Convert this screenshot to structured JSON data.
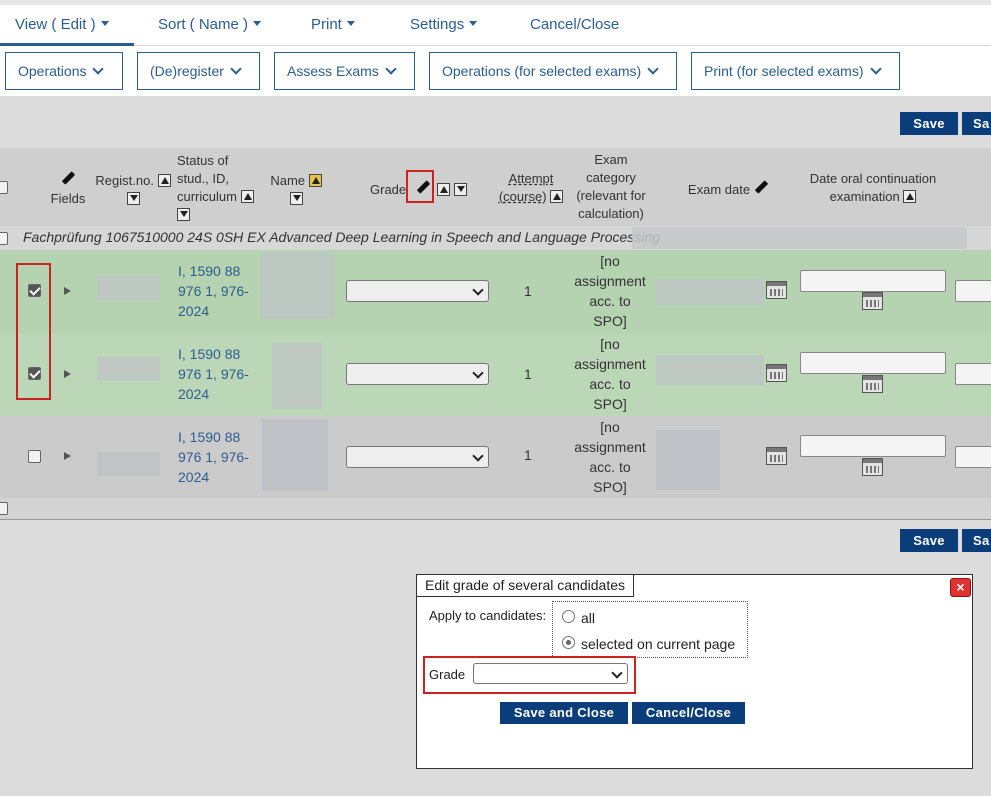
{
  "top_menu": {
    "view": "View ( Edit )",
    "sort": "Sort ( Name )",
    "print": "Print",
    "settings": "Settings",
    "cancel": "Cancel/Close"
  },
  "ops_bar": {
    "operations": "Operations",
    "deregister": "(De)register",
    "assess": "Assess Exams",
    "operations_selected": "Operations (for selected exams)",
    "print_selected": "Print (for selected exams)"
  },
  "save_label": "Save",
  "save_label_cut": "Sa",
  "table": {
    "headers": {
      "fields": "Fields",
      "regist": "Regist.no.",
      "status": [
        "Status of",
        "stud., ID,",
        "curriculum"
      ],
      "name": "Name",
      "grade": "Grade",
      "attempt": [
        "Attempt",
        "(course)"
      ],
      "exam_category": [
        "Exam",
        "category",
        "(relevant for",
        "calculation)"
      ],
      "exam_date": "Exam date",
      "date_oral": [
        "Date oral continuation",
        "examination"
      ]
    },
    "group_label": "Fachprüfung 1067510000 24S 0SH EX Advanced Deep Learning in Speech and Language Processing",
    "rows": [
      {
        "checked": true,
        "status": [
          "I, 1590 88",
          "976 1, 976-",
          "2024"
        ],
        "attempt": "1",
        "category": [
          "[no",
          "assignment",
          "acc. to",
          "SPO]"
        ]
      },
      {
        "checked": true,
        "status": [
          "I, 1590 88",
          "976 1, 976-",
          "2024"
        ],
        "attempt": "1",
        "category": [
          "[no",
          "assignment",
          "acc. to",
          "SPO]"
        ]
      },
      {
        "checked": false,
        "status": [
          "I, 1590 88",
          "976 1, 976-",
          "2024"
        ],
        "attempt": "1",
        "category": [
          "[no",
          "assignment",
          "acc. to",
          "SPO]"
        ]
      }
    ]
  },
  "dialog": {
    "title": "Edit grade of several candidates",
    "close": "×",
    "apply_label": "Apply to candidates:",
    "option_all": "all",
    "option_selected": "selected on current page",
    "grade_label": "Grade",
    "save_close": "Save and Close",
    "cancel_close": "Cancel/Close"
  },
  "colors": {
    "primary": "#0b3d7a",
    "link": "#2c5d8f",
    "highlight": "#c22222",
    "selected_row": "#b5d2b1"
  },
  "icons": [
    "chevron-down-icon",
    "pencil-icon",
    "sort-up-icon",
    "filter-icon",
    "calendar-icon",
    "expand-icon",
    "close-icon"
  ]
}
